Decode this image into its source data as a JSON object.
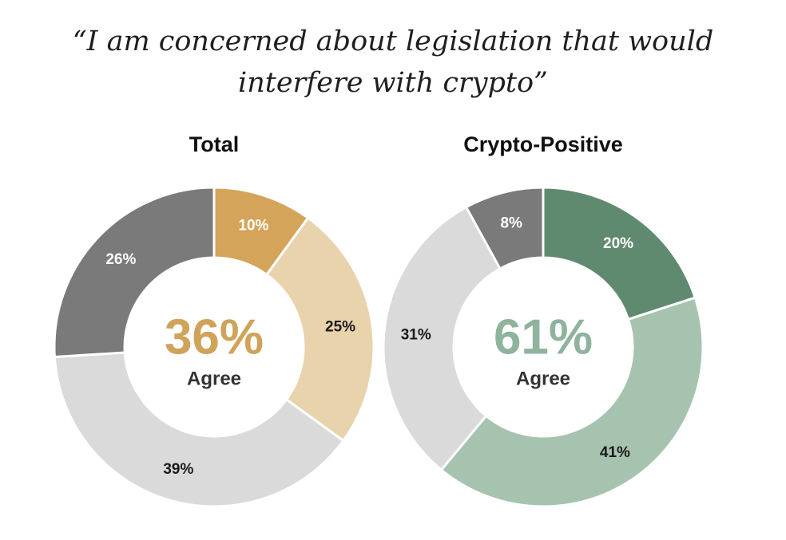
{
  "headline": {
    "line1": "“I am concerned about legislation that would",
    "line2": "interfere with crypto”"
  },
  "chart_data": [
    {
      "type": "pie",
      "title": "Total",
      "center_value": "36%",
      "center_caption": "Agree",
      "center_color": "#cfa35a",
      "slices": [
        {
          "value": 10,
          "label": "10%",
          "color": "#d4a45a",
          "label_color": "#ffffff"
        },
        {
          "value": 25,
          "label": "25%",
          "color": "#e9d3ad",
          "label_color": "#1a1a1a"
        },
        {
          "value": 39,
          "label": "39%",
          "color": "#dadada",
          "label_color": "#1a1a1a"
        },
        {
          "value": 26,
          "label": "26%",
          "color": "#7a7a7a",
          "label_color": "#ffffff"
        }
      ]
    },
    {
      "type": "pie",
      "title": "Crypto-Positive",
      "center_value": "61%",
      "center_caption": "Agree",
      "center_color": "#8fb39d",
      "slices": [
        {
          "value": 20,
          "label": "20%",
          "color": "#608a6f",
          "label_color": "#ffffff"
        },
        {
          "value": 41,
          "label": "41%",
          "color": "#a6c3b0",
          "label_color": "#1a1a1a"
        },
        {
          "value": 31,
          "label": "31%",
          "color": "#dadada",
          "label_color": "#1a1a1a"
        },
        {
          "value": 8,
          "label": "8%",
          "color": "#7a7a7a",
          "label_color": "#ffffff"
        }
      ]
    }
  ]
}
